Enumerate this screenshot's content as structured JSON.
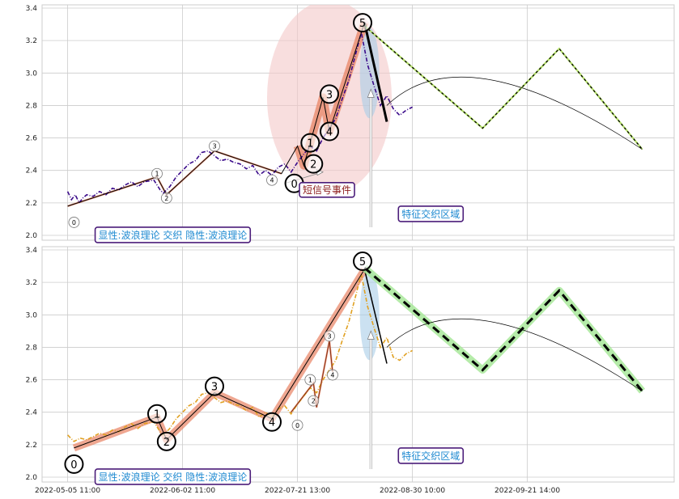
{
  "chart_data": [
    {
      "type": "line",
      "panel": "top",
      "grid": true,
      "ylim": [
        1.97,
        3.42
      ],
      "y_ticks": [
        "2.0",
        "2.2",
        "2.4",
        "2.6",
        "2.8",
        "3.0",
        "3.2",
        "3.4"
      ],
      "price_color": "#3a0a8a",
      "price_style": "dash-dot",
      "price": [
        [
          0.0,
          2.27
        ],
        [
          0.6,
          2.22
        ],
        [
          1.2,
          2.25
        ],
        [
          1.8,
          2.2
        ],
        [
          2.4,
          2.23
        ],
        [
          3.0,
          2.25
        ],
        [
          4.0,
          2.24
        ],
        [
          5.0,
          2.27
        ],
        [
          6.0,
          2.25
        ],
        [
          7.0,
          2.29
        ],
        [
          8.0,
          2.28
        ],
        [
          9.0,
          2.31
        ],
        [
          10.0,
          2.33
        ],
        [
          11.0,
          2.3
        ],
        [
          12.0,
          2.33
        ],
        [
          13.5,
          2.34
        ],
        [
          14.5,
          2.28
        ],
        [
          15.0,
          2.26
        ],
        [
          16.0,
          2.3
        ],
        [
          17.0,
          2.36
        ],
        [
          18.0,
          2.4
        ],
        [
          19.0,
          2.44
        ],
        [
          20.0,
          2.46
        ],
        [
          21.0,
          2.51
        ],
        [
          22.0,
          2.52
        ],
        [
          23.0,
          2.49
        ],
        [
          24.0,
          2.46
        ],
        [
          25.0,
          2.47
        ],
        [
          26.0,
          2.45
        ],
        [
          27.0,
          2.44
        ],
        [
          28.0,
          2.41
        ],
        [
          29.0,
          2.43
        ],
        [
          30.0,
          2.37
        ],
        [
          31.0,
          2.4
        ],
        [
          32.0,
          2.37
        ],
        [
          33.0,
          2.42
        ],
        [
          34.0,
          2.44
        ],
        [
          35.0,
          2.39
        ],
        [
          36.0,
          2.45
        ],
        [
          37.0,
          2.5
        ],
        [
          38.0,
          2.55
        ],
        [
          39.0,
          2.52
        ],
        [
          40.0,
          2.6
        ],
        [
          41.0,
          2.66
        ],
        [
          42.0,
          2.72
        ],
        [
          43.0,
          2.84
        ],
        [
          44.0,
          2.95
        ],
        [
          45.0,
          3.1
        ],
        [
          46.0,
          3.25
        ],
        [
          47.0,
          3.05
        ],
        [
          48.0,
          2.92
        ],
        [
          49.0,
          2.8
        ],
        [
          50.0,
          2.86
        ],
        [
          51.0,
          2.78
        ],
        [
          52.0,
          2.74
        ],
        [
          53.0,
          2.77
        ],
        [
          54.0,
          2.79
        ]
      ],
      "wave_line": [
        [
          0.0,
          2.18
        ],
        [
          14.0,
          2.36
        ],
        [
          15.5,
          2.25
        ],
        [
          23.0,
          2.52
        ],
        [
          33.5,
          2.38
        ],
        [
          36.0,
          2.55
        ],
        [
          37.0,
          2.43
        ],
        [
          40.0,
          2.85
        ],
        [
          41.0,
          2.64
        ],
        [
          46.5,
          3.31
        ],
        [
          50.0,
          2.7
        ]
      ],
      "wave_points": [
        {
          "x": 1.0,
          "y": 2.08,
          "label": "0",
          "size": "small"
        },
        {
          "x": 14.0,
          "y": 2.38,
          "label": "1",
          "size": "small"
        },
        {
          "x": 15.5,
          "y": 2.23,
          "label": "2",
          "size": "small"
        },
        {
          "x": 23.0,
          "y": 2.55,
          "label": "3",
          "size": "small"
        },
        {
          "x": 32.0,
          "y": 2.34,
          "label": "4",
          "size": "small"
        },
        {
          "x": 35.5,
          "y": 2.32,
          "label": "0",
          "size": "big"
        },
        {
          "x": 38.0,
          "y": 2.57,
          "label": "1",
          "size": "big"
        },
        {
          "x": 38.5,
          "y": 2.44,
          "label": "2",
          "size": "big"
        },
        {
          "x": 41.0,
          "y": 2.87,
          "label": "3",
          "size": "big"
        },
        {
          "x": 41.0,
          "y": 2.64,
          "label": "4",
          "size": "big"
        },
        {
          "x": 46.2,
          "y": 3.31,
          "label": "5",
          "size": "big"
        }
      ],
      "forecast": [
        [
          46.5,
          3.29
        ],
        [
          65.0,
          2.66
        ],
        [
          77.0,
          3.15
        ],
        [
          90.0,
          2.53
        ]
      ],
      "forecast_curve": [
        [
          50.0,
          2.8
        ],
        [
          66.0,
          2.96
        ],
        [
          90.0,
          2.53
        ]
      ],
      "annotations": [
        {
          "text": "显性:波浪理论 交织 隐性:波浪理论",
          "x": 0.0,
          "y": 2.0
        },
        {
          "text": "短信号事件",
          "x": 32.0,
          "y": 2.28,
          "color": "#8b1a1a"
        },
        {
          "text": "特征交织区域",
          "x": 47.5,
          "y": 2.13
        }
      ]
    },
    {
      "type": "line",
      "panel": "bottom",
      "grid": true,
      "ylim": [
        1.97,
        3.42
      ],
      "y_ticks": [
        "2.0",
        "2.2",
        "2.4",
        "2.6",
        "2.8",
        "3.0",
        "3.2",
        "3.4"
      ],
      "price_color": "#e0a020",
      "price_style": "dash-dot",
      "price": [
        [
          0.0,
          2.26
        ],
        [
          1.0,
          2.22
        ],
        [
          2.0,
          2.24
        ],
        [
          3.0,
          2.23
        ],
        [
          4.0,
          2.25
        ],
        [
          5.0,
          2.27
        ],
        [
          6.0,
          2.26
        ],
        [
          7.0,
          2.29
        ],
        [
          8.0,
          2.28
        ],
        [
          9.0,
          2.31
        ],
        [
          10.0,
          2.33
        ],
        [
          11.0,
          2.3
        ],
        [
          12.0,
          2.33
        ],
        [
          13.5,
          2.34
        ],
        [
          14.5,
          2.28
        ],
        [
          15.0,
          2.26
        ],
        [
          16.0,
          2.3
        ],
        [
          17.0,
          2.36
        ],
        [
          18.0,
          2.4
        ],
        [
          19.0,
          2.44
        ],
        [
          20.0,
          2.46
        ],
        [
          21.0,
          2.51
        ],
        [
          22.0,
          2.52
        ],
        [
          23.0,
          2.49
        ],
        [
          24.0,
          2.46
        ],
        [
          25.0,
          2.47
        ],
        [
          26.0,
          2.45
        ],
        [
          27.0,
          2.44
        ],
        [
          28.0,
          2.41
        ],
        [
          29.0,
          2.43
        ],
        [
          30.0,
          2.37
        ],
        [
          31.0,
          2.4
        ],
        [
          32.0,
          2.37
        ],
        [
          33.0,
          2.42
        ],
        [
          34.0,
          2.44
        ],
        [
          35.0,
          2.39
        ],
        [
          36.0,
          2.45
        ],
        [
          37.0,
          2.5
        ],
        [
          38.0,
          2.55
        ],
        [
          39.0,
          2.52
        ],
        [
          40.0,
          2.6
        ],
        [
          41.0,
          2.66
        ],
        [
          42.0,
          2.72
        ],
        [
          43.0,
          2.84
        ],
        [
          44.0,
          2.95
        ],
        [
          45.0,
          3.1
        ],
        [
          46.0,
          3.25
        ],
        [
          47.0,
          3.05
        ],
        [
          48.0,
          2.92
        ],
        [
          49.0,
          2.8
        ],
        [
          50.0,
          2.86
        ],
        [
          51.0,
          2.74
        ],
        [
          52.0,
          2.72
        ],
        [
          53.0,
          2.76
        ],
        [
          54.0,
          2.78
        ]
      ],
      "wave_line": [
        [
          1.0,
          2.18
        ],
        [
          14.0,
          2.37
        ],
        [
          15.5,
          2.23
        ],
        [
          23.0,
          2.52
        ],
        [
          32.0,
          2.36
        ],
        [
          46.5,
          3.28
        ],
        [
          50.0,
          2.7
        ]
      ],
      "small_wave_line": [
        [
          35.0,
          2.4
        ],
        [
          38.5,
          2.58
        ],
        [
          39.0,
          2.43
        ],
        [
          41.0,
          2.84
        ],
        [
          41.5,
          2.65
        ]
      ],
      "wave_points": [
        {
          "x": 1.0,
          "y": 2.08,
          "label": "0",
          "size": "big"
        },
        {
          "x": 14.0,
          "y": 2.39,
          "label": "1",
          "size": "big"
        },
        {
          "x": 15.5,
          "y": 2.22,
          "label": "2",
          "size": "big"
        },
        {
          "x": 23.0,
          "y": 2.56,
          "label": "3",
          "size": "big"
        },
        {
          "x": 32.0,
          "y": 2.34,
          "label": "4",
          "size": "big"
        },
        {
          "x": 36.0,
          "y": 2.32,
          "label": "0",
          "size": "small"
        },
        {
          "x": 38.0,
          "y": 2.6,
          "label": "1",
          "size": "small"
        },
        {
          "x": 38.5,
          "y": 2.47,
          "label": "2",
          "size": "small"
        },
        {
          "x": 41.0,
          "y": 2.87,
          "label": "3",
          "size": "small"
        },
        {
          "x": 41.5,
          "y": 2.63,
          "label": "4",
          "size": "small"
        },
        {
          "x": 46.2,
          "y": 3.33,
          "label": "5",
          "size": "big"
        }
      ],
      "forecast": [
        [
          46.5,
          3.29
        ],
        [
          65.0,
          2.66
        ],
        [
          77.0,
          3.15
        ],
        [
          90.0,
          2.53
        ]
      ],
      "forecast_curve": [
        [
          50.0,
          2.8
        ],
        [
          66.0,
          2.96
        ],
        [
          90.0,
          2.53
        ]
      ],
      "annotations": [
        {
          "text": "显性:波浪理论 交织 隐性:波浪理论",
          "x": 0.0,
          "y": 2.0
        },
        {
          "text": "特征交织区域",
          "x": 47.5,
          "y": 2.13
        }
      ]
    }
  ],
  "x_ticks": [
    "2022-05-05 11:00",
    "2022-06-02 11:00",
    "2022-07-21 13:00",
    "2022-08-30 10:00",
    "2022-09-21 14:00"
  ],
  "x_tick_positions": [
    0,
    18,
    36,
    54,
    72
  ],
  "xlim": [
    -4,
    95
  ],
  "colors": {
    "grid": "#cccccc",
    "frame": "#cccccc",
    "wave_fill": "#e98a6c",
    "forecast_dash": "#b5e06b",
    "forecast_glow": "#a8e89a",
    "ellipse_red": "#f3c8c8",
    "ellipse_blue": "#a8cde8",
    "annot_border": "#4b1d7a",
    "annot_text": "#1f8ad1"
  }
}
